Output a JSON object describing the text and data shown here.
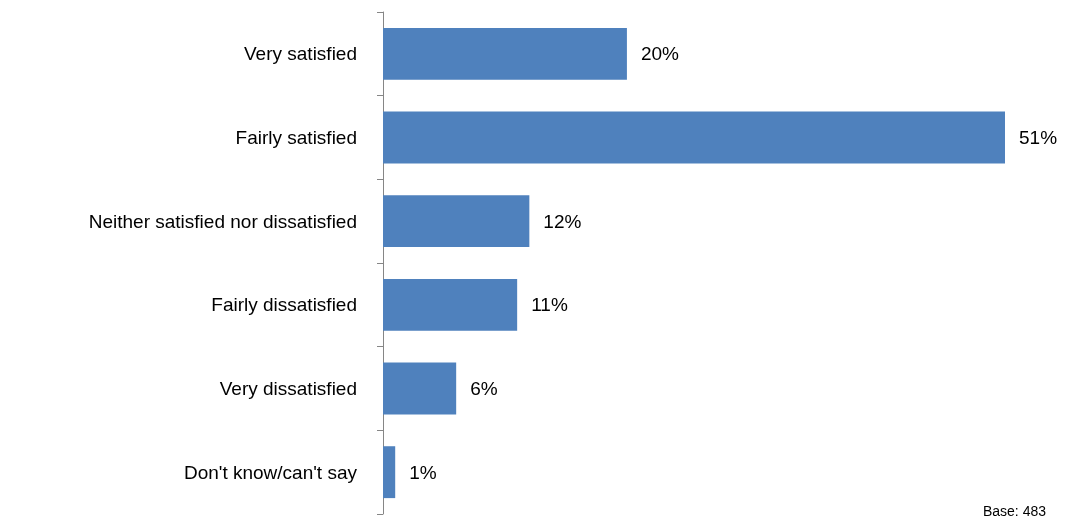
{
  "chart_data": {
    "type": "bar",
    "orientation": "horizontal",
    "categories": [
      "Very satisfied",
      "Fairly satisfied",
      "Neither satisfied nor dissatisfied",
      "Fairly dissatisfied",
      "Very dissatisfied",
      "Don't know/can't say"
    ],
    "values": [
      20,
      51,
      12,
      11,
      6,
      1
    ],
    "value_labels": [
      "20%",
      "51%",
      "12%",
      "11%",
      "6%",
      "1%"
    ],
    "color": "#4f81bd",
    "annotations": [
      "Base: 483"
    ]
  }
}
